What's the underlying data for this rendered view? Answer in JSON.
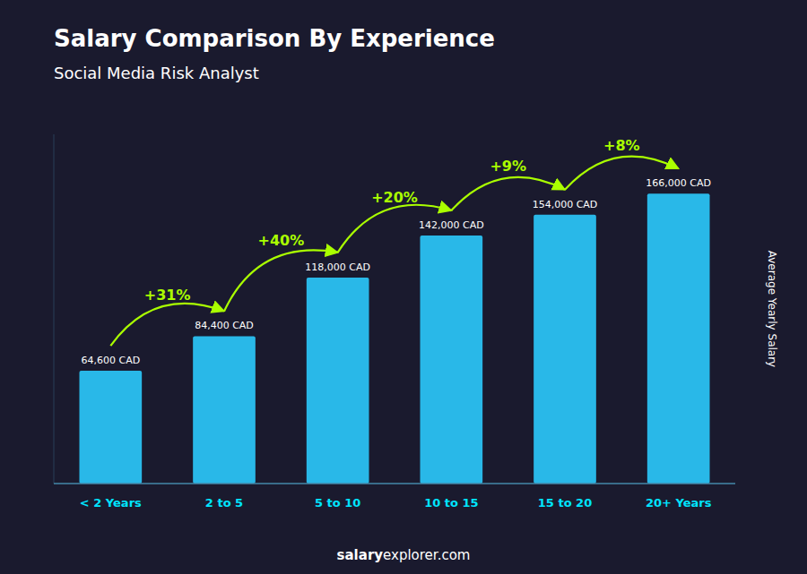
{
  "chart_data": {
    "type": "bar",
    "title": "Salary Comparison By Experience",
    "subtitle": "Social Media Risk Analyst",
    "categories": [
      "< 2 Years",
      "2 to 5",
      "5 to 10",
      "10 to 15",
      "15 to 20",
      "20+ Years"
    ],
    "values": [
      64600,
      84400,
      118000,
      142000,
      154000,
      166000
    ],
    "value_labels": [
      "64,600 CAD",
      "84,400 CAD",
      "118,000 CAD",
      "142,000 CAD",
      "154,000 CAD",
      "166,000 CAD"
    ],
    "data_labels": true,
    "annotations": [
      "+31%",
      "+40%",
      "+20%",
      "+9%",
      "+8%"
    ],
    "y_label": "Average Yearly Salary",
    "footer": [
      "salary",
      "explorer.com"
    ],
    "color": "#29b8e8",
    "ylim": [
      0,
      200000
    ],
    "tick_labels": "x",
    "grid": false
  }
}
